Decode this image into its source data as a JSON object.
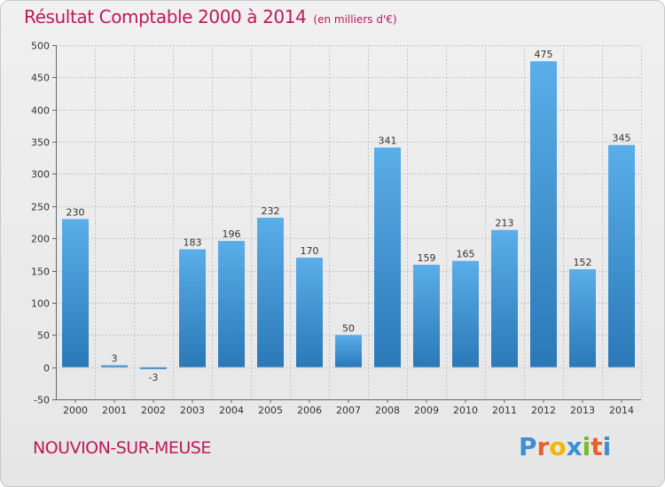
{
  "header": {
    "title": "Résultat Comptable 2000 à 2014",
    "subtitle": "(en milliers d'€)"
  },
  "commune": "NOUVION-SUR-MEUSE",
  "logo": {
    "text": "Proxiti",
    "colors": [
      "#3b8fd6",
      "#e8612c",
      "#f2b705",
      "#3b8fd6",
      "#7cb82f",
      "#e8612c",
      "#3b8fd6"
    ]
  },
  "chart_data": {
    "type": "bar",
    "title": "Résultat Comptable 2000 à 2014",
    "subtitle": "(en milliers d'€)",
    "categories": [
      "2000",
      "2001",
      "2002",
      "2003",
      "2004",
      "2005",
      "2006",
      "2007",
      "2008",
      "2009",
      "2010",
      "2011",
      "2012",
      "2013",
      "2014"
    ],
    "values": [
      230,
      3,
      -3,
      183,
      196,
      232,
      170,
      50,
      341,
      159,
      165,
      213,
      475,
      152,
      345
    ],
    "ylim": [
      -50,
      500
    ],
    "yticks": [
      -50,
      0,
      50,
      100,
      150,
      200,
      250,
      300,
      350,
      400,
      450,
      500
    ],
    "grid": true,
    "bar_color_top": "#5aaee9",
    "bar_color_bottom": "#2a78b8"
  }
}
